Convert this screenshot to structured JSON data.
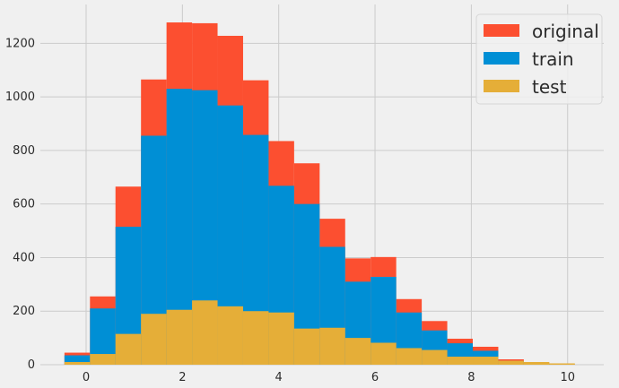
{
  "chart_data": {
    "type": "bar",
    "style": "overlapping histograms",
    "bin_edges": [
      -0.45,
      0.08,
      0.61,
      1.14,
      1.67,
      2.2,
      2.73,
      3.26,
      3.79,
      4.32,
      4.85,
      5.38,
      5.91,
      6.44,
      6.97,
      7.5,
      8.03,
      8.56,
      9.09,
      9.62,
      10.15
    ],
    "series": [
      {
        "name": "original",
        "color": "#fc4f30",
        "values": [
          45,
          255,
          665,
          1065,
          1278,
          1275,
          1228,
          1062,
          835,
          752,
          545,
          397,
          402,
          245,
          163,
          97,
          67,
          20,
          5,
          2
        ]
      },
      {
        "name": "train",
        "color": "#008fd5",
        "values": [
          35,
          210,
          515,
          855,
          1030,
          1025,
          968,
          858,
          668,
          600,
          440,
          310,
          328,
          195,
          128,
          80,
          52,
          15,
          4,
          1
        ]
      },
      {
        "name": "test",
        "color": "#e5ae38",
        "values": [
          10,
          40,
          115,
          190,
          205,
          240,
          218,
          200,
          195,
          135,
          138,
          100,
          82,
          62,
          55,
          30,
          30,
          15,
          10,
          5
        ]
      }
    ],
    "x_ticks": [
      0,
      2,
      4,
      6,
      8,
      10
    ],
    "y_ticks": [
      0,
      200,
      400,
      600,
      800,
      1000,
      1200
    ],
    "xlim": [
      -0.95,
      10.75
    ],
    "ylim": [
      0,
      1345
    ],
    "grid": true,
    "legend_position": "top-right"
  }
}
